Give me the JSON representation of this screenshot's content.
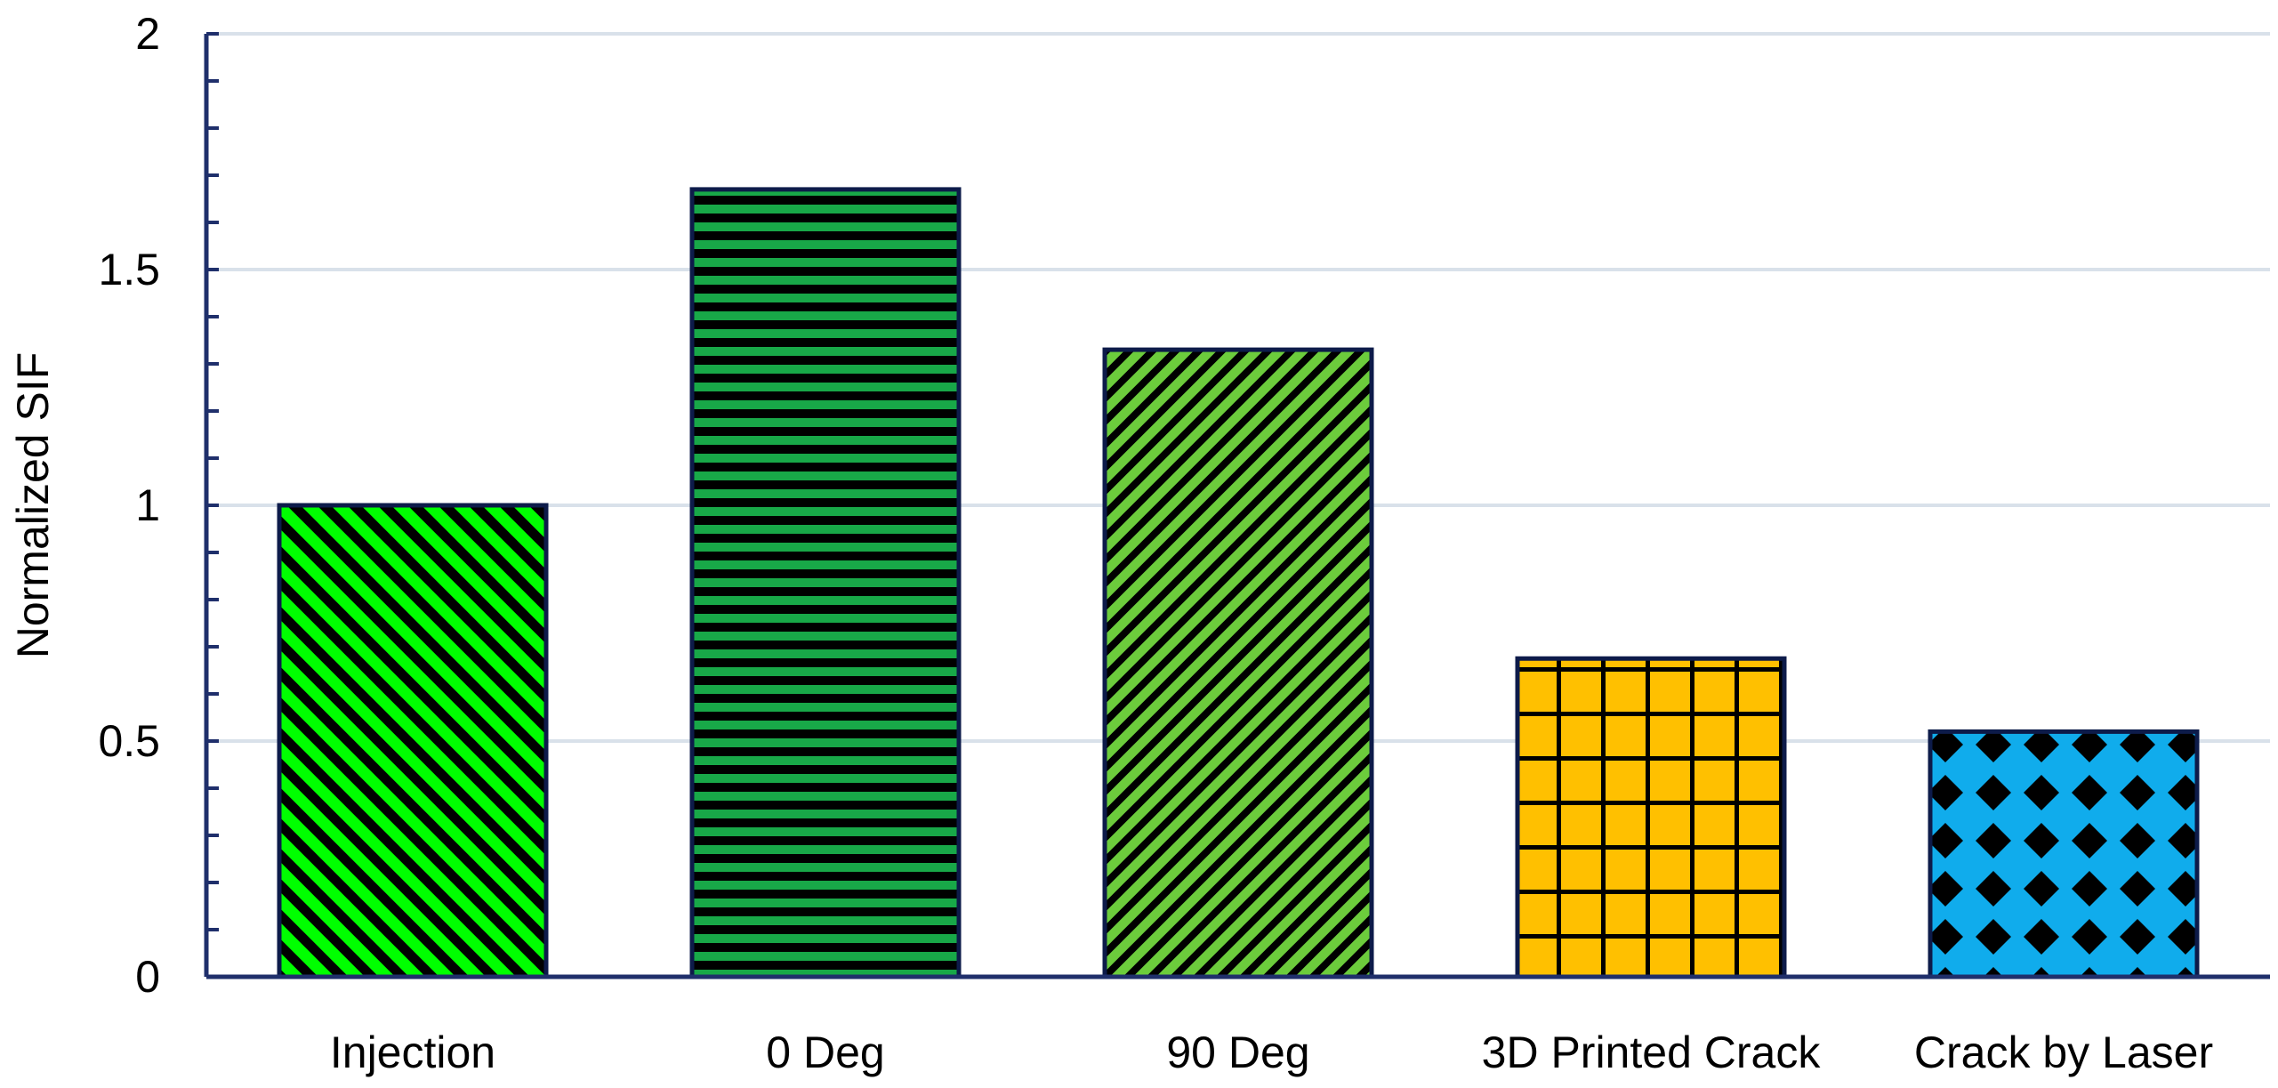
{
  "chart_data": {
    "type": "bar",
    "title": "",
    "xlabel": "",
    "ylabel": "Normalized SIF",
    "ylim": [
      0,
      2
    ],
    "yticks": [
      {
        "value": 0,
        "label": "0"
      },
      {
        "value": 0.5,
        "label": "0.5"
      },
      {
        "value": 1,
        "label": "1"
      },
      {
        "value": 1.5,
        "label": "1.5"
      },
      {
        "value": 2,
        "label": "2"
      }
    ],
    "grid": true,
    "legend": "none",
    "categories": [
      "Injection",
      "0 Deg",
      "90 Deg",
      "3D Printed Crack",
      "Crack by Laser"
    ],
    "values": [
      1.0,
      1.67,
      1.33,
      0.675,
      0.52
    ],
    "bar_styles": [
      {
        "fill": "#00ff00",
        "pattern": "diagonal-down"
      },
      {
        "fill": "#18a848",
        "pattern": "horizontal-stripes"
      },
      {
        "fill": "#6ccc3c",
        "pattern": "diagonal-up"
      },
      {
        "fill": "#ffc000",
        "pattern": "grid"
      },
      {
        "fill": "#10acec",
        "pattern": "diamonds"
      }
    ],
    "colors": {
      "axis": "#1f2f6b",
      "gridline": "#d9e1ea",
      "bar_outline": "#0d1b4a",
      "pattern_ink": "#000000"
    }
  }
}
